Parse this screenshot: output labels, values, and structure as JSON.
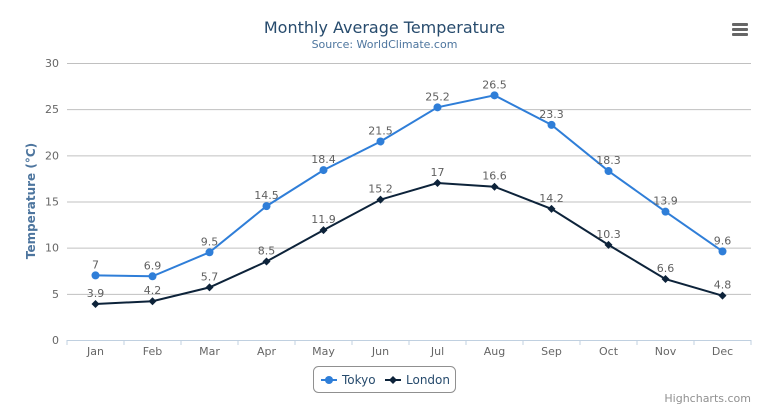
{
  "chart_data": {
    "type": "line",
    "title": "Monthly Average Temperature",
    "subtitle": "Source: WorldClimate.com",
    "xlabel": "",
    "ylabel": "Temperature (°C)",
    "ylim": [
      0,
      30
    ],
    "yticks": [
      0,
      5,
      10,
      15,
      20,
      25,
      30
    ],
    "grid": true,
    "legend_placement": "bottom-center",
    "categories": [
      "Jan",
      "Feb",
      "Mar",
      "Apr",
      "May",
      "Jun",
      "Jul",
      "Aug",
      "Sep",
      "Oct",
      "Nov",
      "Dec"
    ],
    "series": [
      {
        "name": "Tokyo",
        "color": "#2f7ed8",
        "marker": "circle",
        "values": [
          7.0,
          6.9,
          9.5,
          14.5,
          18.4,
          21.5,
          25.2,
          26.5,
          23.3,
          18.3,
          13.9,
          9.6
        ]
      },
      {
        "name": "London",
        "color": "#0d233a",
        "marker": "diamond",
        "values": [
          3.9,
          4.2,
          5.7,
          8.5,
          11.9,
          15.2,
          17.0,
          16.6,
          14.2,
          10.3,
          6.6,
          4.8
        ]
      }
    ],
    "data_labels": true
  },
  "credits": "Highcharts.com",
  "menu_icon": "hamburger-menu-icon"
}
